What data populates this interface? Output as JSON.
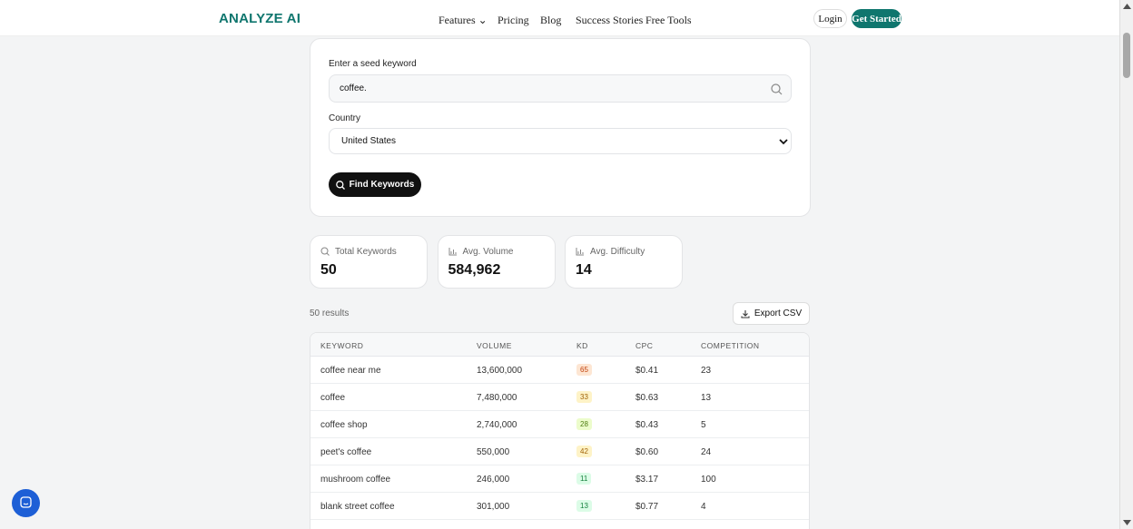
{
  "nav": {
    "logo": "ANALYZE AI",
    "links": [
      "Features",
      "Pricing",
      "Blog",
      "Success Stories",
      "Free Tools"
    ],
    "login": "Login",
    "cta": "Get Started"
  },
  "form": {
    "keyword_label": "Enter a seed keyword",
    "keyword_value": "coffee.",
    "country_label": "Country",
    "country_value": "United States",
    "button": "Find Keywords"
  },
  "stats": [
    {
      "label": "Total Keywords",
      "value": "50"
    },
    {
      "label": "Avg. Volume",
      "value": "584,962"
    },
    {
      "label": "Avg. Difficulty",
      "value": "14"
    }
  ],
  "results": {
    "count": "50 results",
    "export": "Export CSV"
  },
  "table": {
    "headers": [
      "KEYWORD",
      "VOLUME",
      "KD",
      "CPC",
      "COMPETITION"
    ],
    "rows": [
      [
        "coffee near me",
        "13,600,000",
        "65",
        "$0.41",
        "23"
      ],
      [
        "coffee",
        "7,480,000",
        "33",
        "$0.63",
        "13"
      ],
      [
        "coffee shop",
        "2,740,000",
        "28",
        "$0.43",
        "5"
      ],
      [
        "peet's coffee",
        "550,000",
        "42",
        "$0.60",
        "24"
      ],
      [
        "mushroom coffee",
        "246,000",
        "11",
        "$3.17",
        "100"
      ],
      [
        "blank street coffee",
        "301,000",
        "13",
        "$0.77",
        "4"
      ]
    ]
  }
}
